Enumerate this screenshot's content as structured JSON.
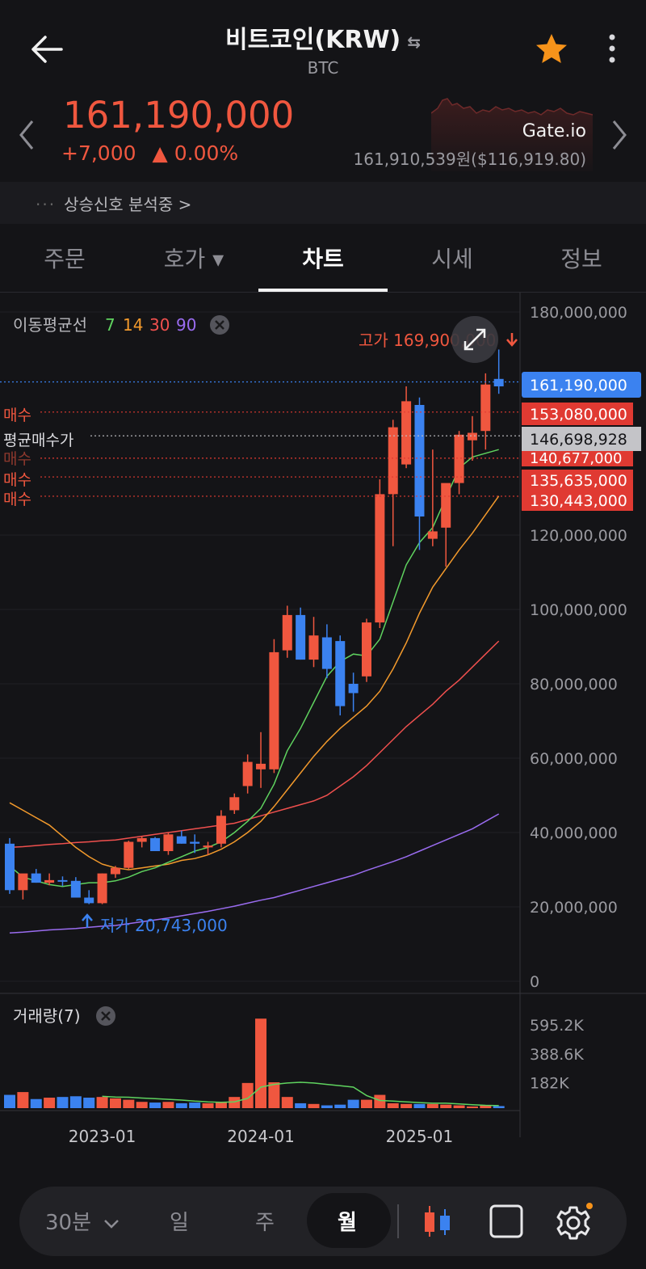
{
  "header": {
    "title": "비트코인(KRW)",
    "subtitle": "BTC",
    "swap_icon": "⇆"
  },
  "ticker": {
    "price": "161,190,000",
    "change": "+7,000",
    "change_arrow": "▲",
    "change_pct": "0.00%",
    "exchange": "Gate.io",
    "exchange_price": "161,910,539원($116,919.80)"
  },
  "signal": {
    "dots": "···",
    "text": "상승신호 분석중 >"
  },
  "tabs": [
    "주문",
    "호가 ▾",
    "차트",
    "시세",
    "정보"
  ],
  "ma_legend": {
    "label": "이동평균선",
    "periods": [
      {
        "v": "7",
        "color": "#5fd35f"
      },
      {
        "v": "14",
        "color": "#f39a2c"
      },
      {
        "v": "30",
        "color": "#f0504e"
      },
      {
        "v": "90",
        "color": "#9a6cf0"
      }
    ]
  },
  "volume_legend": "거래량(7)",
  "annotations": {
    "high": "고가 169,900,000",
    "low": "저가 20,743,000"
  },
  "buy_labels": {
    "buy1": "매수",
    "avg": "평균매수가",
    "hidden": "매수",
    "buy2": "매수",
    "buy3": "매수"
  },
  "price_tags": {
    "current": "161,190,000",
    "buy1": "153,080,000",
    "avg": "146,698,928",
    "hidden": "140,677,000",
    "buy2": "135,635,000",
    "buy3": "130,443,000"
  },
  "colors": {
    "up": "#f0573f",
    "down": "#3b82f0",
    "ma7": "#5fd35f",
    "ma14": "#f39a2c",
    "ma30": "#f0504e",
    "ma90": "#9a6cf0",
    "current_tag": "#3b82f0",
    "buy_tag": "#e03a32",
    "avg_tag": "#c4c4c8"
  },
  "bottom_bar": {
    "interval": "30분",
    "interval_icon": "chevron-down-icon",
    "day": "일",
    "week": "주",
    "month": "월",
    "selected": "월"
  },
  "chart_data": {
    "type": "candlestick",
    "interval": "monthly",
    "y_axis": {
      "ylim": [
        0,
        180000000
      ],
      "ticks": [
        "180,000,000",
        "120,000,000",
        "100,000,000",
        "80,000,000",
        "60,000,000",
        "40,000,000",
        "20,000,000",
        "0"
      ],
      "tick_values": [
        180000000,
        120000000,
        100000000,
        80000000,
        60000000,
        40000000,
        20000000,
        0
      ]
    },
    "x_axis": {
      "labels": [
        "2023-01",
        "2024-01",
        "2025-01"
      ]
    },
    "candles": [
      {
        "o": 37000000,
        "h": 38500000,
        "l": 23500000,
        "c": 24500000
      },
      {
        "o": 24500000,
        "h": 28500000,
        "l": 22000000,
        "c": 29000000
      },
      {
        "o": 29000000,
        "h": 30200000,
        "l": 26500000,
        "c": 26500000
      },
      {
        "o": 26500000,
        "h": 29000000,
        "l": 25800000,
        "c": 27200000
      },
      {
        "o": 27200000,
        "h": 28200000,
        "l": 25600000,
        "c": 27000000
      },
      {
        "o": 27000000,
        "h": 28000000,
        "l": 22800000,
        "c": 22500000
      },
      {
        "o": 22500000,
        "h": 24500000,
        "l": 20743000,
        "c": 21000000
      },
      {
        "o": 21000000,
        "h": 29000000,
        "l": 20743000,
        "c": 29000000
      },
      {
        "o": 28800000,
        "h": 31000000,
        "l": 27800000,
        "c": 30500000
      },
      {
        "o": 30500000,
        "h": 37800000,
        "l": 30200000,
        "c": 37500000
      },
      {
        "o": 37500000,
        "h": 39000000,
        "l": 36000000,
        "c": 38500000
      },
      {
        "o": 38500000,
        "h": 38800000,
        "l": 35500000,
        "c": 35000000
      },
      {
        "o": 35000000,
        "h": 40000000,
        "l": 34000000,
        "c": 39500000
      },
      {
        "o": 39000000,
        "h": 40500000,
        "l": 37000000,
        "c": 37000000
      },
      {
        "o": 37500000,
        "h": 39500000,
        "l": 34500000,
        "c": 37000000
      },
      {
        "o": 36000000,
        "h": 37500000,
        "l": 34000000,
        "c": 36500000
      },
      {
        "o": 37000000,
        "h": 46000000,
        "l": 36000000,
        "c": 44500000
      },
      {
        "o": 46000000,
        "h": 50500000,
        "l": 45000000,
        "c": 49500000
      },
      {
        "o": 52500000,
        "h": 61000000,
        "l": 50500000,
        "c": 59000000
      },
      {
        "o": 57000000,
        "h": 67000000,
        "l": 52000000,
        "c": 58500000
      },
      {
        "o": 57000000,
        "h": 92000000,
        "l": 56000000,
        "c": 88500000
      },
      {
        "o": 89000000,
        "h": 101000000,
        "l": 87000000,
        "c": 98500000
      },
      {
        "o": 98500000,
        "h": 100500000,
        "l": 86500000,
        "c": 86500000
      },
      {
        "o": 86500000,
        "h": 98000000,
        "l": 84500000,
        "c": 93000000
      },
      {
        "o": 92500000,
        "h": 96000000,
        "l": 81500000,
        "c": 84000000
      },
      {
        "o": 91500000,
        "h": 93000000,
        "l": 71500000,
        "c": 74000000
      },
      {
        "o": 80000000,
        "h": 83000000,
        "l": 72500000,
        "c": 77500000
      },
      {
        "o": 82000000,
        "h": 97500000,
        "l": 80500000,
        "c": 96500000
      },
      {
        "o": 96500000,
        "h": 135000000,
        "l": 95000000,
        "c": 131000000
      },
      {
        "o": 131000000,
        "h": 151000000,
        "l": 117000000,
        "c": 149000000
      },
      {
        "o": 139000000,
        "h": 160000000,
        "l": 138000000,
        "c": 156000000
      },
      {
        "o": 155000000,
        "h": 157000000,
        "l": 116000000,
        "c": 125000000
      },
      {
        "o": 119000000,
        "h": 143000000,
        "l": 117000000,
        "c": 121000000
      },
      {
        "o": 122000000,
        "h": 133000000,
        "l": 111500000,
        "c": 134000000
      },
      {
        "o": 134000000,
        "h": 148000000,
        "l": 131000000,
        "c": 147000000
      },
      {
        "o": 145500000,
        "h": 152000000,
        "l": 140000000,
        "c": 147500000
      },
      {
        "o": 148000000,
        "h": 163500000,
        "l": 143000000,
        "c": 160500000
      },
      {
        "o": 162000000,
        "h": 169900000,
        "l": 158000000,
        "c": 160000000
      }
    ],
    "moving_averages": {
      "7": [
        31000000,
        28000000,
        27000000,
        26000000,
        25500000,
        26000000,
        26500000,
        26500000,
        27000000,
        28000000,
        29500000,
        30500000,
        32000000,
        33500000,
        35000000,
        36000000,
        37500000,
        40000000,
        43000000,
        46500000,
        53000000,
        62000000,
        68000000,
        75000000,
        82000000,
        86000000,
        88000000,
        87500000,
        92000000,
        102000000,
        112000000,
        118000000,
        122000000,
        130000000,
        138000000,
        141000000,
        142000000,
        143000000
      ],
      "14": [
        48000000,
        46000000,
        44000000,
        42000000,
        39000000,
        36000000,
        33500000,
        31500000,
        30500000,
        30000000,
        30500000,
        31000000,
        31500000,
        32500000,
        33000000,
        34000000,
        35500000,
        37500000,
        40000000,
        43000000,
        47000000,
        51500000,
        56000000,
        60500000,
        64500000,
        68000000,
        71000000,
        74000000,
        78000000,
        84000000,
        91000000,
        99000000,
        106000000,
        111000000,
        116000000,
        120500000,
        125500000,
        130500000
      ],
      "30": [
        36000000,
        36200000,
        36500000,
        36800000,
        37000000,
        37300000,
        37500000,
        37800000,
        38000000,
        38500000,
        39000000,
        39500000,
        40000000,
        40500000,
        41000000,
        41500000,
        42000000,
        42500000,
        43500000,
        44500000,
        45500000,
        46500000,
        47500000,
        48500000,
        50000000,
        52500000,
        55000000,
        58000000,
        61500000,
        65000000,
        68500000,
        71500000,
        74500000,
        78000000,
        81000000,
        84500000,
        88000000,
        91500000
      ],
      "90": [
        13000000,
        13200000,
        13500000,
        13800000,
        14000000,
        14200000,
        14500000,
        14800000,
        15000000,
        15500000,
        16000000,
        16500000,
        17000000,
        17600000,
        18200000,
        18800000,
        19500000,
        20200000,
        21000000,
        21800000,
        22500000,
        23500000,
        24500000,
        25500000,
        26500000,
        27500000,
        28500000,
        29800000,
        31000000,
        32200000,
        33500000,
        35000000,
        36500000,
        38000000,
        39500000,
        41000000,
        43000000,
        45000000
      ]
    },
    "volume": {
      "ticks": [
        "595.2K",
        "388.6K",
        "182K"
      ],
      "tick_values": [
        595200,
        388600,
        182000
      ],
      "values": [
        95000,
        115000,
        65000,
        75000,
        80000,
        85000,
        75000,
        80000,
        70000,
        60000,
        45000,
        40000,
        45000,
        35000,
        40000,
        35000,
        45000,
        80000,
        180000,
        640000,
        185000,
        80000,
        35000,
        30000,
        20000,
        25000,
        60000,
        60000,
        95000,
        35000,
        30000,
        30000,
        30000,
        25000,
        20000,
        12000,
        18000,
        15000
      ],
      "ma7": [
        0,
        0,
        0,
        0,
        0,
        0,
        0,
        85000,
        80000,
        78000,
        72000,
        68000,
        63000,
        58000,
        50000,
        45000,
        42000,
        45000,
        70000,
        150000,
        170000,
        180000,
        185000,
        180000,
        170000,
        160000,
        150000,
        90000,
        55000,
        50000,
        45000,
        40000,
        35000,
        35000,
        30000,
        25000,
        20000,
        18000
      ]
    }
  }
}
